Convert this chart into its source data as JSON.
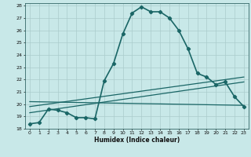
{
  "title": "",
  "xlabel": "Humidex (Indice chaleur)",
  "ylabel": "",
  "background_color": "#c8e8e8",
  "grid_color": "#aacccc",
  "line_color": "#1a6666",
  "xlim": [
    -0.5,
    23.5
  ],
  "ylim": [
    18,
    28.2
  ],
  "xticks": [
    0,
    1,
    2,
    3,
    4,
    5,
    6,
    7,
    8,
    9,
    10,
    11,
    12,
    13,
    14,
    15,
    16,
    17,
    18,
    19,
    20,
    21,
    22,
    23
  ],
  "yticks": [
    18,
    19,
    20,
    21,
    22,
    23,
    24,
    25,
    26,
    27,
    28
  ],
  "series": [
    {
      "x": [
        0,
        1,
        2,
        3,
        4,
        5,
        6,
        7,
        8,
        9,
        10,
        11,
        12,
        13,
        14,
        15,
        16,
        17,
        18,
        19,
        20,
        21,
        22,
        23
      ],
      "y": [
        18.4,
        18.5,
        19.6,
        19.5,
        19.3,
        18.9,
        18.9,
        18.8,
        21.9,
        23.3,
        25.7,
        27.4,
        27.9,
        27.5,
        27.5,
        27.0,
        26.0,
        24.5,
        22.5,
        22.2,
        21.6,
        21.8,
        20.6,
        19.8
      ],
      "marker": "D",
      "markersize": 2.2,
      "linewidth": 1.2
    },
    {
      "x": [
        0,
        23
      ],
      "y": [
        19.3,
        21.8
      ],
      "marker": null,
      "linewidth": 0.9
    },
    {
      "x": [
        0,
        23
      ],
      "y": [
        19.8,
        22.2
      ],
      "marker": null,
      "linewidth": 0.9
    },
    {
      "x": [
        0,
        23
      ],
      "y": [
        20.2,
        19.9
      ],
      "marker": null,
      "linewidth": 0.9
    }
  ]
}
